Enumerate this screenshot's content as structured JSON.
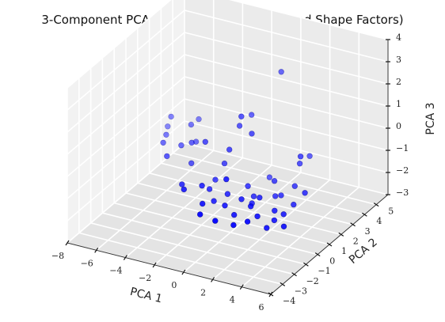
{
  "chart_data": {
    "type": "scatter",
    "projection": "3d",
    "title": "3-Component PCA (Geometrical Features and Shape Factors)",
    "xlabel": "PCA 1",
    "ylabel": "PCA 2",
    "zlabel": "PCA 3",
    "xlim": [
      -8,
      6
    ],
    "ylim": [
      -4,
      6
    ],
    "zlim": [
      -3,
      4
    ],
    "xticks": [
      "−8",
      "−6",
      "−4",
      "−2",
      "0",
      "2",
      "4",
      "6"
    ],
    "yticks": [
      "−4",
      "−3",
      "−2",
      "−1",
      "0",
      "1",
      "2",
      "3",
      "4",
      "5"
    ],
    "zticks": [
      "−3",
      "−2",
      "−1",
      "0",
      "1",
      "2",
      "3",
      "4"
    ],
    "grid": true,
    "marker_color": "#0000ff",
    "series": [
      {
        "points": [
          [
            -6.9,
            3.2,
            -0.8
          ],
          [
            -6.6,
            2.7,
            -0.9
          ],
          [
            -6.4,
            2.2,
            -1.0
          ],
          [
            -6.5,
            3.0,
            -0.2
          ],
          [
            -5.5,
            1.4,
            -1.1
          ],
          [
            -4.8,
            2.6,
            -0.1
          ],
          [
            -4.2,
            1.9,
            -0.5
          ],
          [
            -3.9,
            1.5,
            -1.2
          ],
          [
            -4.6,
            3.0,
            0.0
          ],
          [
            -5.0,
            2.0,
            -0.8
          ],
          [
            -2.7,
            1.2,
            0.1
          ],
          [
            -4.3,
            2.4,
            -0.7
          ],
          [
            -3.5,
            0.2,
            -1.5
          ],
          [
            -2.8,
            -0.5,
            -1.3
          ],
          [
            -1.6,
            0.2,
            -1.4
          ],
          [
            -0.9,
            -0.3,
            -1.6
          ],
          [
            -1.3,
            1.1,
            -0.6
          ],
          [
            -0.8,
            0.9,
            0.2
          ],
          [
            -0.5,
            1.4,
            1.1
          ],
          [
            0.0,
            1.8,
            1.5
          ],
          [
            -0.3,
            1.3,
            1.6
          ],
          [
            0.5,
            1.2,
            1.0
          ],
          [
            -1.2,
            -0.9,
            -1.5
          ],
          [
            -1.6,
            0.7,
            -1.2
          ],
          [
            -0.2,
            0.0,
            -1.3
          ],
          [
            0.1,
            -0.6,
            -1.5
          ],
          [
            0.8,
            0.5,
            -1.0
          ],
          [
            1.4,
            0.1,
            -1.5
          ],
          [
            1.0,
            -0.3,
            -1.2
          ],
          [
            0.9,
            -0.8,
            -1.7
          ],
          [
            1.8,
            -0.5,
            -1.3
          ],
          [
            2.0,
            0.0,
            -1.1
          ],
          [
            2.6,
            0.6,
            -1.2
          ],
          [
            2.5,
            -0.8,
            -1.5
          ],
          [
            3.2,
            -0.2,
            -1.4
          ],
          [
            3.0,
            0.6,
            -1.1
          ],
          [
            3.5,
            -0.6,
            -1.6
          ],
          [
            3.3,
            -1.0,
            -1.8
          ],
          [
            3.9,
            -0.3,
            -1.4
          ],
          [
            4.1,
            0.3,
            -1.2
          ],
          [
            4.4,
            -0.9,
            -1.6
          ],
          [
            1.4,
            1.6,
            -1.0
          ],
          [
            2.3,
            0.9,
            -0.7
          ],
          [
            1.2,
            0.5,
            -1.4
          ],
          [
            -0.8,
            -1.6,
            -1.6
          ],
          [
            0.4,
            -1.8,
            -1.6
          ],
          [
            0.2,
            -0.6,
            -0.3
          ],
          [
            3.8,
            1.2,
            0.2
          ],
          [
            4.0,
            1.8,
            0.3
          ],
          [
            3.7,
            0.9,
            -0.7
          ],
          [
            4.8,
            0.4,
            -0.6
          ],
          [
            4.1,
            0.9,
            0.7
          ],
          [
            1.8,
            2.1,
            3.6
          ],
          [
            -1.8,
            -0.2,
            -1.1
          ],
          [
            1.5,
            -1.6,
            -1.7
          ],
          [
            2.3,
            -1.4,
            -1.5
          ]
        ]
      }
    ]
  }
}
